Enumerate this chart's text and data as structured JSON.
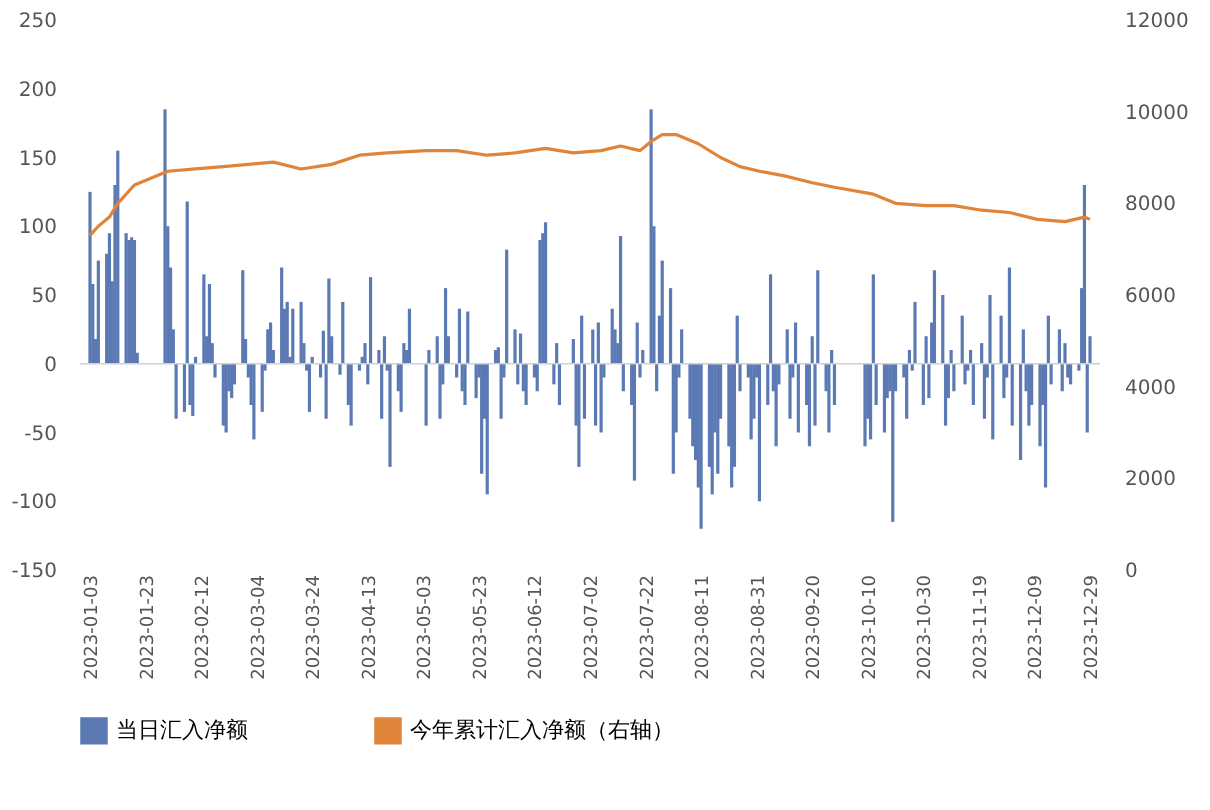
{
  "chart_data": {
    "type": "bar",
    "legend": "bottom",
    "grid": false,
    "ylim": [
      -150,
      250
    ],
    "yticks": [
      -150,
      -100,
      -50,
      0,
      50,
      100,
      150,
      200,
      250
    ],
    "y2lim": [
      0,
      12000
    ],
    "y2ticks": [
      0,
      2000,
      4000,
      6000,
      8000,
      10000,
      12000
    ],
    "xlim": [
      "2023-01-03",
      "2023-12-29"
    ],
    "ref_lines": [
      {
        "axis": "y",
        "value": 0,
        "color": "#d0d0d0"
      }
    ],
    "xticks": [
      "2023-01-03",
      "2023-01-23",
      "2023-02-12",
      "2023-03-04",
      "2023-03-24",
      "2023-04-13",
      "2023-05-03",
      "2023-05-23",
      "2023-06-12",
      "2023-07-02",
      "2023-07-22",
      "2023-08-11",
      "2023-08-31",
      "2023-09-20",
      "2023-10-10",
      "2023-10-30",
      "2023-11-19",
      "2023-12-09",
      "2023-12-29"
    ],
    "series": [
      {
        "name": "当日汇入净额",
        "color": "#5b79b3",
        "x": [
          "2023-01-03",
          "2023-01-04",
          "2023-01-05",
          "2023-01-06",
          "2023-01-09",
          "2023-01-10",
          "2023-01-11",
          "2023-01-12",
          "2023-01-13",
          "2023-01-16",
          "2023-01-17",
          "2023-01-18",
          "2023-01-19",
          "2023-01-20",
          "2023-01-30",
          "2023-01-31",
          "2023-02-01",
          "2023-02-02",
          "2023-02-03",
          "2023-02-06",
          "2023-02-07",
          "2023-02-08",
          "2023-02-09",
          "2023-02-10",
          "2023-02-13",
          "2023-02-14",
          "2023-02-15",
          "2023-02-16",
          "2023-02-17",
          "2023-02-20",
          "2023-02-21",
          "2023-02-22",
          "2023-02-23",
          "2023-02-24",
          "2023-02-27",
          "2023-02-28",
          "2023-03-01",
          "2023-03-02",
          "2023-03-03",
          "2023-03-06",
          "2023-03-07",
          "2023-03-08",
          "2023-03-09",
          "2023-03-10",
          "2023-03-13",
          "2023-03-14",
          "2023-03-15",
          "2023-03-16",
          "2023-03-17",
          "2023-03-20",
          "2023-03-21",
          "2023-03-22",
          "2023-03-23",
          "2023-03-24",
          "2023-03-27",
          "2023-03-28",
          "2023-03-29",
          "2023-03-30",
          "2023-03-31",
          "2023-04-03",
          "2023-04-04",
          "2023-04-06",
          "2023-04-07",
          "2023-04-10",
          "2023-04-11",
          "2023-04-12",
          "2023-04-13",
          "2023-04-14",
          "2023-04-17",
          "2023-04-18",
          "2023-04-19",
          "2023-04-20",
          "2023-04-21",
          "2023-04-24",
          "2023-04-25",
          "2023-04-26",
          "2023-04-27",
          "2023-04-28",
          "2023-05-04",
          "2023-05-05",
          "2023-05-08",
          "2023-05-09",
          "2023-05-10",
          "2023-05-11",
          "2023-05-12",
          "2023-05-15",
          "2023-05-16",
          "2023-05-17",
          "2023-05-18",
          "2023-05-19",
          "2023-05-22",
          "2023-05-23",
          "2023-05-24",
          "2023-05-25",
          "2023-05-26",
          "2023-05-29",
          "2023-05-30",
          "2023-05-31",
          "2023-06-01",
          "2023-06-02",
          "2023-06-05",
          "2023-06-06",
          "2023-06-07",
          "2023-06-08",
          "2023-06-09",
          "2023-06-12",
          "2023-06-13",
          "2023-06-14",
          "2023-06-15",
          "2023-06-16",
          "2023-06-19",
          "2023-06-20",
          "2023-06-21",
          "2023-06-26",
          "2023-06-27",
          "2023-06-28",
          "2023-06-29",
          "2023-06-30",
          "2023-07-03",
          "2023-07-04",
          "2023-07-05",
          "2023-07-06",
          "2023-07-07",
          "2023-07-10",
          "2023-07-11",
          "2023-07-12",
          "2023-07-13",
          "2023-07-14",
          "2023-07-17",
          "2023-07-18",
          "2023-07-19",
          "2023-07-20",
          "2023-07-21",
          "2023-07-24",
          "2023-07-25",
          "2023-07-26",
          "2023-07-27",
          "2023-07-28",
          "2023-07-31",
          "2023-08-01",
          "2023-08-02",
          "2023-08-03",
          "2023-08-04",
          "2023-08-07",
          "2023-08-08",
          "2023-08-09",
          "2023-08-10",
          "2023-08-11",
          "2023-08-14",
          "2023-08-15",
          "2023-08-16",
          "2023-08-17",
          "2023-08-18",
          "2023-08-21",
          "2023-08-22",
          "2023-08-23",
          "2023-08-24",
          "2023-08-25",
          "2023-08-28",
          "2023-08-29",
          "2023-08-30",
          "2023-08-31",
          "2023-09-01",
          "2023-09-04",
          "2023-09-05",
          "2023-09-06",
          "2023-09-07",
          "2023-09-08",
          "2023-09-11",
          "2023-09-12",
          "2023-09-13",
          "2023-09-14",
          "2023-09-15",
          "2023-09-18",
          "2023-09-19",
          "2023-09-20",
          "2023-09-21",
          "2023-09-22",
          "2023-09-25",
          "2023-09-26",
          "2023-09-27",
          "2023-09-28",
          "2023-10-09",
          "2023-10-10",
          "2023-10-11",
          "2023-10-12",
          "2023-10-13",
          "2023-10-16",
          "2023-10-17",
          "2023-10-18",
          "2023-10-19",
          "2023-10-20",
          "2023-10-23",
          "2023-10-24",
          "2023-10-25",
          "2023-10-26",
          "2023-10-27",
          "2023-10-30",
          "2023-10-31",
          "2023-11-01",
          "2023-11-02",
          "2023-11-03",
          "2023-11-06",
          "2023-11-07",
          "2023-11-08",
          "2023-11-09",
          "2023-11-10",
          "2023-11-13",
          "2023-11-14",
          "2023-11-15",
          "2023-11-16",
          "2023-11-17",
          "2023-11-20",
          "2023-11-21",
          "2023-11-22",
          "2023-11-23",
          "2023-11-24",
          "2023-11-27",
          "2023-11-28",
          "2023-11-29",
          "2023-11-30",
          "2023-12-01",
          "2023-12-04",
          "2023-12-05",
          "2023-12-06",
          "2023-12-07",
          "2023-12-08",
          "2023-12-11",
          "2023-12-12",
          "2023-12-13",
          "2023-12-14",
          "2023-12-15",
          "2023-12-18",
          "2023-12-19",
          "2023-12-20",
          "2023-12-21",
          "2023-12-22",
          "2023-12-25",
          "2023-12-26",
          "2023-12-27",
          "2023-12-28",
          "2023-12-29"
        ],
        "values": [
          125,
          58,
          18,
          75,
          80,
          95,
          60,
          130,
          155,
          95,
          90,
          92,
          90,
          8,
          185,
          100,
          70,
          25,
          -40,
          -35,
          118,
          -30,
          -38,
          5,
          65,
          20,
          58,
          15,
          -10,
          -45,
          -50,
          -20,
          -25,
          -15,
          68,
          18,
          -10,
          -30,
          -55,
          -35,
          -5,
          25,
          30,
          10,
          70,
          40,
          45,
          5,
          40,
          45,
          15,
          -5,
          -35,
          5,
          -10,
          24,
          -40,
          62,
          20,
          -8,
          45,
          -30,
          -45,
          -5,
          5,
          15,
          -15,
          63,
          10,
          -40,
          20,
          -5,
          -75,
          -20,
          -35,
          15,
          10,
          40,
          -45,
          10,
          20,
          -40,
          -15,
          55,
          20,
          -10,
          40,
          -20,
          -30,
          38,
          -25,
          -10,
          -80,
          -40,
          -95,
          10,
          12,
          -40,
          -10,
          83,
          25,
          -15,
          22,
          -20,
          -30,
          -10,
          -20,
          90,
          95,
          103,
          -15,
          15,
          -30,
          18,
          -45,
          -75,
          35,
          -40,
          25,
          -45,
          30,
          -50,
          -10,
          40,
          25,
          15,
          93,
          -20,
          -30,
          -85,
          30,
          -10,
          10,
          185,
          100,
          -20,
          35,
          75,
          55,
          -80,
          -50,
          -10,
          25,
          -40,
          -60,
          -70,
          -90,
          -120,
          -75,
          -95,
          -50,
          -80,
          -40,
          -60,
          -90,
          -75,
          35,
          -20,
          -10,
          -55,
          -40,
          -10,
          -100,
          -30,
          65,
          -20,
          -60,
          -15,
          25,
          -40,
          -10,
          30,
          -50,
          -30,
          -60,
          20,
          -45,
          68,
          -20,
          -50,
          10,
          -30,
          -60,
          -40,
          -55,
          65,
          -30,
          -50,
          -25,
          -20,
          -115,
          -20,
          -10,
          -40,
          10,
          -5,
          45,
          -30,
          20,
          -25,
          30,
          68,
          50,
          -45,
          -25,
          10,
          -20,
          35,
          -15,
          -5,
          10,
          -30,
          15,
          -40,
          -10,
          50,
          -55,
          35,
          -25,
          -10,
          70,
          -45,
          -70,
          25,
          -20,
          -45,
          -30,
          -60,
          -30,
          -90,
          35,
          -15,
          25,
          -20,
          15,
          -10,
          -15,
          -5,
          55,
          130,
          -50,
          20
        ]
      },
      {
        "name": "今年累计汇入净额（右轴）",
        "type": "line",
        "axis": "y2",
        "color": "#e0843a",
        "x": [
          "2023-01-03",
          "2023-01-06",
          "2023-01-10",
          "2023-01-13",
          "2023-01-19",
          "2023-01-31",
          "2023-02-10",
          "2023-02-20",
          "2023-03-01",
          "2023-03-10",
          "2023-03-20",
          "2023-03-31",
          "2023-04-10",
          "2023-04-20",
          "2023-05-04",
          "2023-05-15",
          "2023-05-26",
          "2023-06-05",
          "2023-06-16",
          "2023-06-26",
          "2023-07-06",
          "2023-07-13",
          "2023-07-20",
          "2023-07-24",
          "2023-07-28",
          "2023-08-02",
          "2023-08-10",
          "2023-08-18",
          "2023-08-25",
          "2023-09-01",
          "2023-09-10",
          "2023-09-20",
          "2023-09-28",
          "2023-10-12",
          "2023-10-20",
          "2023-10-31",
          "2023-11-10",
          "2023-11-20",
          "2023-11-30",
          "2023-12-10",
          "2023-12-20",
          "2023-12-27",
          "2023-12-29"
        ],
        "values": [
          7300,
          7500,
          7700,
          8000,
          8400,
          8700,
          8750,
          8800,
          8850,
          8900,
          8750,
          8850,
          9050,
          9100,
          9150,
          9150,
          9050,
          9100,
          9200,
          9100,
          9150,
          9250,
          9150,
          9350,
          9500,
          9500,
          9300,
          9000,
          8800,
          8700,
          8600,
          8450,
          8350,
          8200,
          8000,
          7950,
          7950,
          7850,
          7800,
          7650,
          7600,
          7700,
          7650
        ]
      }
    ]
  }
}
